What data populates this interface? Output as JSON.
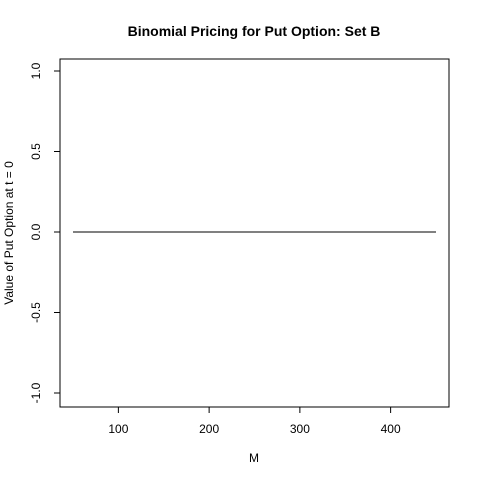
{
  "chart_data": {
    "type": "line",
    "title": "Binomial Pricing for Put Option: Set B",
    "xlabel": "M",
    "ylabel": "Value of Put Option at t = 0",
    "xlim": [
      50,
      450
    ],
    "ylim": [
      -1.0,
      1.0
    ],
    "xticks": [
      100,
      200,
      300,
      400
    ],
    "yticks": [
      -1.0,
      -0.5,
      0.0,
      0.5,
      1.0
    ],
    "xtick_labels": [
      "100",
      "200",
      "300",
      "400"
    ],
    "ytick_labels": [
      "-1.0",
      "-0.5",
      "0.0",
      "0.5",
      "1.0"
    ],
    "grid": false,
    "legend": "none",
    "line_color": "#000000",
    "x": [
      50,
      100,
      150,
      200,
      250,
      300,
      350,
      400,
      450
    ],
    "values": [
      0,
      0,
      0,
      0,
      0,
      0,
      0,
      0,
      0
    ]
  }
}
